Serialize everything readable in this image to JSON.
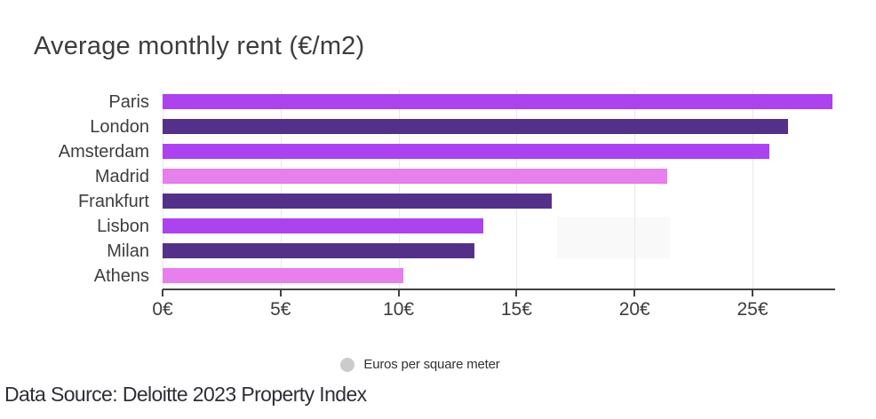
{
  "title": "Average monthly rent (€/m2)",
  "footer": "Data Source: Deloitte 2023 Property Index",
  "legend": {
    "label": "Euros per square meter",
    "dot_color": "#cbcbcb"
  },
  "colors": {
    "bright_purple": "#ac43ee",
    "dark_purple": "#543189",
    "light_orchid": "#e77fed",
    "axis": "#424242",
    "gridline": "#e8e8e8",
    "text": "#3d3d3d"
  },
  "chart_data": {
    "type": "bar",
    "orientation": "horizontal",
    "title": "Average monthly rent (€/m2)",
    "categories": [
      "Paris",
      "London",
      "Amsterdam",
      "Madrid",
      "Frankfurt",
      "Lisbon",
      "Milan",
      "Athens"
    ],
    "values": [
      28.4,
      26.5,
      25.7,
      21.4,
      16.5,
      13.6,
      13.2,
      10.2
    ],
    "bar_colors": [
      "#ac43ee",
      "#543189",
      "#ac43ee",
      "#e77fed",
      "#543189",
      "#ac43ee",
      "#543189",
      "#e77fed"
    ],
    "unit": "Euros per square meter",
    "xlim": [
      0,
      28.5
    ],
    "grid": true,
    "grid_values": [
      0,
      5,
      10,
      15,
      20,
      25
    ],
    "axis_ticks": [
      {
        "value": 0,
        "label": "0€"
      },
      {
        "value": 5,
        "label": "5€"
      },
      {
        "value": 10,
        "label": "10€"
      },
      {
        "value": 15,
        "label": "15€"
      },
      {
        "value": 20,
        "label": "20€"
      },
      {
        "value": 25,
        "label": "25€"
      }
    ],
    "legend_position": "bottom-center",
    "source": "Data Source: Deloitte 2023 Property Index"
  }
}
